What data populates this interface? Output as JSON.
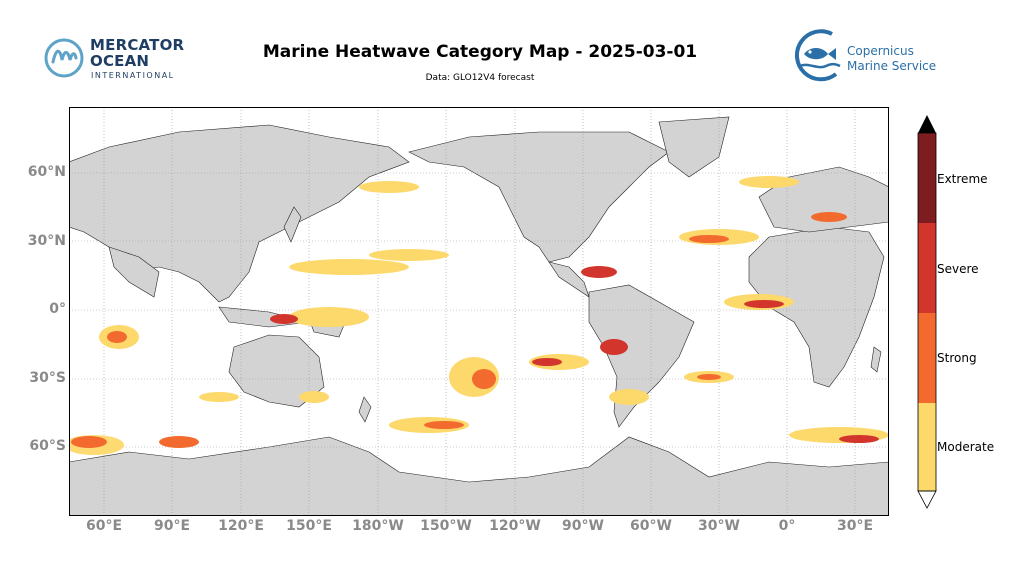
{
  "header": {
    "title": "Marine Heatwave Category Map - 2025-03-01",
    "subtitle": "Data: GLO12V4 forecast"
  },
  "logos": {
    "left": {
      "line1": "MERCATOR",
      "line2": "OCEAN",
      "line3": "INTERNATIONAL",
      "color": "#1f3e63",
      "accent": "#5fa3c9"
    },
    "right": {
      "line1": "Copernicus",
      "line2": "Marine Service",
      "color": "#2a6fa8"
    }
  },
  "map": {
    "projection": "equirectangular",
    "lon_range": [
      45,
      50
    ],
    "lat_range": [
      -78,
      90
    ],
    "land_color": "#d3d3d3",
    "ocean_color": "#ffffff",
    "grid_style": "dotted",
    "lat_labels": [
      "60°N",
      "30°N",
      "0°",
      "30°S",
      "60°S"
    ],
    "lon_labels": [
      "60°E",
      "90°E",
      "120°E",
      "150°E",
      "180°W",
      "150°W",
      "120°W",
      "90°W",
      "60°W",
      "30°W",
      "0°",
      "30°E"
    ]
  },
  "legend": {
    "categories": [
      "Extreme",
      "Severe",
      "Strong",
      "Moderate"
    ],
    "colors": {
      "Moderate": "#fdd86a",
      "Strong": "#f26a2e",
      "Severe": "#d2352b",
      "Extreme": "#7e1d20"
    }
  }
}
